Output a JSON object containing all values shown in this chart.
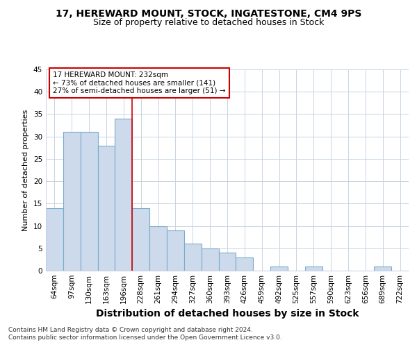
{
  "title": "17, HEREWARD MOUNT, STOCK, INGATESTONE, CM4 9PS",
  "subtitle": "Size of property relative to detached houses in Stock",
  "xlabel": "Distribution of detached houses by size in Stock",
  "ylabel": "Number of detached properties",
  "categories": [
    "64sqm",
    "97sqm",
    "130sqm",
    "163sqm",
    "196sqm",
    "228sqm",
    "261sqm",
    "294sqm",
    "327sqm",
    "360sqm",
    "393sqm",
    "426sqm",
    "459sqm",
    "492sqm",
    "525sqm",
    "557sqm",
    "590sqm",
    "623sqm",
    "656sqm",
    "689sqm",
    "722sqm"
  ],
  "values": [
    14,
    31,
    31,
    28,
    34,
    14,
    10,
    9,
    6,
    5,
    4,
    3,
    0,
    1,
    0,
    1,
    0,
    0,
    0,
    1,
    0
  ],
  "bar_color": "#ccdaeb",
  "bar_edge_color": "#7aaacb",
  "vline_color": "#cc0000",
  "vline_position": 4.5,
  "annotation_line1": "17 HEREWARD MOUNT: 232sqm",
  "annotation_line2": "← 73% of detached houses are smaller (141)",
  "annotation_line3": "27% of semi-detached houses are larger (51) →",
  "annotation_box_color": "#cc0000",
  "ylim": [
    0,
    45
  ],
  "yticks": [
    0,
    5,
    10,
    15,
    20,
    25,
    30,
    35,
    40,
    45
  ],
  "background_color": "#ffffff",
  "grid_color": "#c8d4e3",
  "footer_line1": "Contains HM Land Registry data © Crown copyright and database right 2024.",
  "footer_line2": "Contains public sector information licensed under the Open Government Licence v3.0.",
  "title_fontsize": 10,
  "subtitle_fontsize": 9,
  "xlabel_fontsize": 10,
  "ylabel_fontsize": 8,
  "tick_fontsize": 7.5,
  "annotation_fontsize": 7.5,
  "footer_fontsize": 6.5
}
